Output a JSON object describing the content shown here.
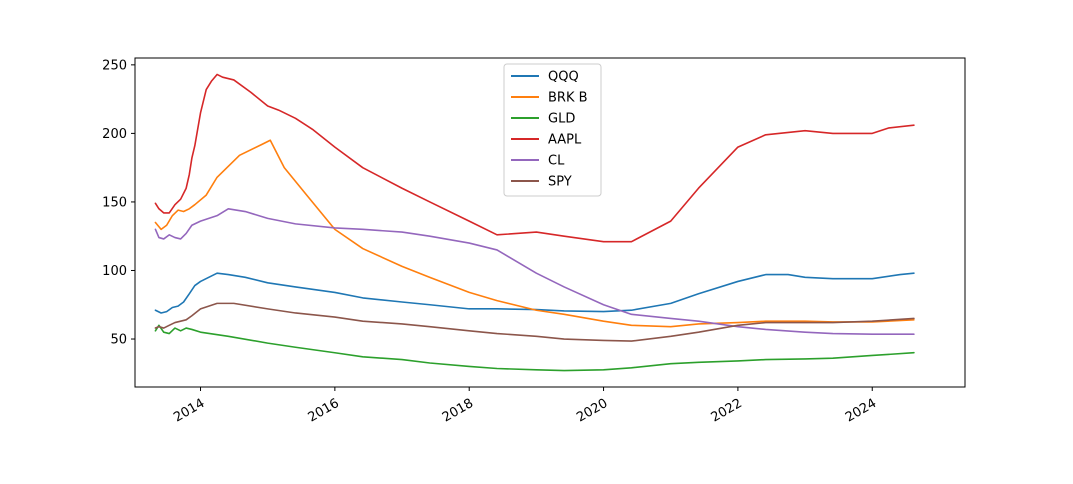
{
  "chart_data": {
    "type": "line",
    "title": "",
    "xlabel": "",
    "ylabel": "",
    "xlim": [
      "2013-01-10",
      "2025-05-20"
    ],
    "ylim": [
      15,
      255
    ],
    "grid": false,
    "legend_position": "top-center",
    "x_ticks": [
      "2014",
      "2016",
      "2018",
      "2020",
      "2022",
      "2024"
    ],
    "y_ticks": [
      50,
      100,
      150,
      200,
      250
    ],
    "series": [
      {
        "name": "QQQ",
        "color": "#1f77b4",
        "points": [
          [
            "2013-05-01",
            71
          ],
          [
            "2013-06-01",
            69
          ],
          [
            "2013-07-01",
            70
          ],
          [
            "2013-08-01",
            73
          ],
          [
            "2013-09-01",
            74
          ],
          [
            "2013-10-01",
            77
          ],
          [
            "2013-11-01",
            83
          ],
          [
            "2013-12-01",
            89
          ],
          [
            "2014-01-01",
            92
          ],
          [
            "2014-02-15",
            95
          ],
          [
            "2014-04-01",
            98
          ],
          [
            "2014-06-01",
            97
          ],
          [
            "2014-09-01",
            95
          ],
          [
            "2015-01-01",
            91
          ],
          [
            "2015-06-01",
            88
          ],
          [
            "2016-01-01",
            84
          ],
          [
            "2016-06-01",
            80
          ],
          [
            "2017-01-01",
            77
          ],
          [
            "2017-06-01",
            75
          ],
          [
            "2018-01-01",
            72
          ],
          [
            "2018-06-01",
            72
          ],
          [
            "2019-01-01",
            71.5
          ],
          [
            "2019-06-01",
            70.5
          ],
          [
            "2020-01-01",
            70
          ],
          [
            "2020-06-01",
            71
          ],
          [
            "2021-01-01",
            76
          ],
          [
            "2021-06-01",
            83
          ],
          [
            "2022-01-01",
            92
          ],
          [
            "2022-06-01",
            97
          ],
          [
            "2022-10-01",
            97
          ],
          [
            "2023-01-01",
            95
          ],
          [
            "2023-06-01",
            94
          ],
          [
            "2024-01-01",
            94
          ],
          [
            "2024-06-01",
            97
          ],
          [
            "2024-08-15",
            98
          ]
        ]
      },
      {
        "name": "BRK B",
        "color": "#ff7f0e",
        "points": [
          [
            "2013-05-01",
            135
          ],
          [
            "2013-06-01",
            130
          ],
          [
            "2013-07-01",
            133
          ],
          [
            "2013-08-01",
            140
          ],
          [
            "2013-09-01",
            144
          ],
          [
            "2013-10-01",
            143
          ],
          [
            "2013-11-01",
            145
          ],
          [
            "2013-12-01",
            148
          ],
          [
            "2014-02-01",
            155
          ],
          [
            "2014-04-01",
            168
          ],
          [
            "2014-08-01",
            184
          ],
          [
            "2014-12-01",
            192
          ],
          [
            "2015-01-15",
            195
          ],
          [
            "2015-04-01",
            175
          ],
          [
            "2015-08-01",
            155
          ],
          [
            "2016-01-01",
            130
          ],
          [
            "2016-06-01",
            116
          ],
          [
            "2017-01-01",
            103
          ],
          [
            "2017-06-01",
            95
          ],
          [
            "2018-01-01",
            84
          ],
          [
            "2018-06-01",
            78
          ],
          [
            "2019-01-01",
            71
          ],
          [
            "2019-06-01",
            68
          ],
          [
            "2020-01-01",
            63
          ],
          [
            "2020-06-01",
            60
          ],
          [
            "2021-01-01",
            59
          ],
          [
            "2021-06-01",
            61
          ],
          [
            "2022-01-01",
            62
          ],
          [
            "2022-06-01",
            63
          ],
          [
            "2023-01-01",
            63
          ],
          [
            "2023-06-01",
            62.5
          ],
          [
            "2024-01-01",
            62.5
          ],
          [
            "2024-08-15",
            64
          ]
        ]
      },
      {
        "name": "GLD",
        "color": "#2ca02c",
        "points": [
          [
            "2013-05-01",
            56
          ],
          [
            "2013-05-20",
            60
          ],
          [
            "2013-06-15",
            55
          ],
          [
            "2013-07-15",
            54
          ],
          [
            "2013-08-15",
            58
          ],
          [
            "2013-09-15",
            56
          ],
          [
            "2013-10-15",
            58
          ],
          [
            "2013-11-15",
            57
          ],
          [
            "2014-01-01",
            55
          ],
          [
            "2014-06-01",
            52
          ],
          [
            "2015-01-01",
            47
          ],
          [
            "2015-06-01",
            44
          ],
          [
            "2016-01-01",
            40
          ],
          [
            "2016-06-01",
            37
          ],
          [
            "2017-01-01",
            35
          ],
          [
            "2017-06-01",
            32.5
          ],
          [
            "2018-01-01",
            30
          ],
          [
            "2018-06-01",
            28.5
          ],
          [
            "2019-01-01",
            27.5
          ],
          [
            "2019-06-01",
            27
          ],
          [
            "2020-01-01",
            27.5
          ],
          [
            "2020-06-01",
            29
          ],
          [
            "2021-01-01",
            32
          ],
          [
            "2021-06-01",
            33
          ],
          [
            "2022-01-01",
            34
          ],
          [
            "2022-06-01",
            35
          ],
          [
            "2023-01-01",
            35.5
          ],
          [
            "2023-06-01",
            36
          ],
          [
            "2024-01-01",
            38
          ],
          [
            "2024-08-15",
            40
          ]
        ]
      },
      {
        "name": "AAPL",
        "color": "#d62728",
        "points": [
          [
            "2013-05-01",
            149
          ],
          [
            "2013-05-20",
            145
          ],
          [
            "2013-06-15",
            142
          ],
          [
            "2013-07-15",
            142
          ],
          [
            "2013-08-15",
            148
          ],
          [
            "2013-09-15",
            152
          ],
          [
            "2013-10-15",
            160
          ],
          [
            "2013-11-01",
            170
          ],
          [
            "2013-11-15",
            182
          ],
          [
            "2013-12-01",
            191
          ],
          [
            "2014-01-01",
            215
          ],
          [
            "2014-02-01",
            232
          ],
          [
            "2014-03-01",
            238
          ],
          [
            "2014-04-01",
            243
          ],
          [
            "2014-05-01",
            241
          ],
          [
            "2014-07-01",
            239
          ],
          [
            "2014-10-01",
            230
          ],
          [
            "2015-01-01",
            220
          ],
          [
            "2015-03-01",
            217
          ],
          [
            "2015-06-01",
            211
          ],
          [
            "2015-09-01",
            203
          ],
          [
            "2016-01-01",
            190
          ],
          [
            "2016-06-01",
            175
          ],
          [
            "2017-01-01",
            160
          ],
          [
            "2017-06-01",
            150
          ],
          [
            "2018-01-01",
            136
          ],
          [
            "2018-06-01",
            126
          ],
          [
            "2019-01-01",
            128
          ],
          [
            "2019-06-01",
            125
          ],
          [
            "2020-01-01",
            121
          ],
          [
            "2020-06-01",
            121
          ],
          [
            "2021-01-01",
            136
          ],
          [
            "2021-06-01",
            160
          ],
          [
            "2022-01-01",
            190
          ],
          [
            "2022-06-01",
            199
          ],
          [
            "2023-01-01",
            202
          ],
          [
            "2023-06-01",
            200
          ],
          [
            "2024-01-01",
            200
          ],
          [
            "2024-04-01",
            204
          ],
          [
            "2024-08-15",
            206
          ]
        ]
      },
      {
        "name": "CL",
        "color": "#9467bd",
        "points": [
          [
            "2013-05-01",
            130
          ],
          [
            "2013-05-20",
            124
          ],
          [
            "2013-06-15",
            123
          ],
          [
            "2013-07-15",
            126
          ],
          [
            "2013-08-15",
            124
          ],
          [
            "2013-09-15",
            123
          ],
          [
            "2013-10-15",
            127
          ],
          [
            "2013-11-15",
            133
          ],
          [
            "2014-01-01",
            136
          ],
          [
            "2014-04-01",
            140
          ],
          [
            "2014-06-01",
            145
          ],
          [
            "2014-09-01",
            143
          ],
          [
            "2015-01-01",
            138
          ],
          [
            "2015-06-01",
            134
          ],
          [
            "2016-01-01",
            131
          ],
          [
            "2016-06-01",
            130
          ],
          [
            "2017-01-01",
            128
          ],
          [
            "2017-06-01",
            125
          ],
          [
            "2018-01-01",
            120
          ],
          [
            "2018-06-01",
            115
          ],
          [
            "2019-01-01",
            98
          ],
          [
            "2019-06-01",
            88
          ],
          [
            "2020-01-01",
            75
          ],
          [
            "2020-06-01",
            68
          ],
          [
            "2021-01-01",
            65
          ],
          [
            "2021-06-01",
            63
          ],
          [
            "2022-01-01",
            59
          ],
          [
            "2022-06-01",
            57
          ],
          [
            "2023-01-01",
            55
          ],
          [
            "2023-06-01",
            54
          ],
          [
            "2024-01-01",
            53.5
          ],
          [
            "2024-08-15",
            53.5
          ]
        ]
      },
      {
        "name": "SPY",
        "color": "#8c564b",
        "points": [
          [
            "2013-05-01",
            58
          ],
          [
            "2013-05-20",
            59
          ],
          [
            "2013-06-15",
            58
          ],
          [
            "2013-07-15",
            60
          ],
          [
            "2013-08-15",
            62
          ],
          [
            "2013-09-15",
            63
          ],
          [
            "2013-10-15",
            64
          ],
          [
            "2013-11-15",
            67
          ],
          [
            "2014-01-01",
            72
          ],
          [
            "2014-04-01",
            76
          ],
          [
            "2014-07-01",
            76
          ],
          [
            "2015-01-01",
            72
          ],
          [
            "2015-06-01",
            69
          ],
          [
            "2016-01-01",
            66
          ],
          [
            "2016-06-01",
            63
          ],
          [
            "2017-01-01",
            61
          ],
          [
            "2017-06-01",
            59
          ],
          [
            "2018-01-01",
            56
          ],
          [
            "2018-06-01",
            54
          ],
          [
            "2019-01-01",
            52
          ],
          [
            "2019-06-01",
            50
          ],
          [
            "2020-01-01",
            49
          ],
          [
            "2020-06-01",
            48.5
          ],
          [
            "2021-01-01",
            52
          ],
          [
            "2021-06-01",
            55
          ],
          [
            "2022-01-01",
            60
          ],
          [
            "2022-06-01",
            62
          ],
          [
            "2023-01-01",
            62
          ],
          [
            "2023-06-01",
            62
          ],
          [
            "2024-01-01",
            63
          ],
          [
            "2024-08-15",
            65
          ]
        ]
      }
    ]
  }
}
